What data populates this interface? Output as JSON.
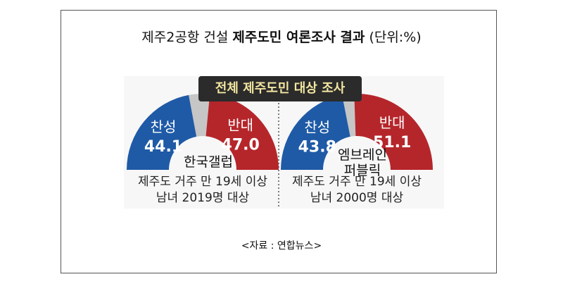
{
  "title": {
    "prefix": "제주2공항 건설 ",
    "main": "제주도민 여론조사 결과",
    "unit": "(단위:%)"
  },
  "banner": "전체 제주도민 대상 조사",
  "source": "<자료 : 연합뉴스>",
  "colors": {
    "support": "#1f5aa6",
    "oppose": "#b5262b",
    "gap": "#c6c6c6"
  },
  "chart_data": [
    {
      "type": "pie",
      "pollster": "한국갤럽",
      "note": [
        "제주도 거주 만 19세 이상",
        "남녀 2019명 대상"
      ],
      "slices": [
        {
          "label": "찬성",
          "value": 44.1
        },
        {
          "label": "반대",
          "value": 47.0
        }
      ]
    },
    {
      "type": "pie",
      "pollster": [
        "엠브레인",
        "퍼블릭"
      ],
      "note": [
        "제주도 거주 만 19세 이상",
        "남녀 2000명 대상"
      ],
      "slices": [
        {
          "label": "찬성",
          "value": 43.8
        },
        {
          "label": "반대",
          "value": 51.1
        }
      ]
    }
  ]
}
